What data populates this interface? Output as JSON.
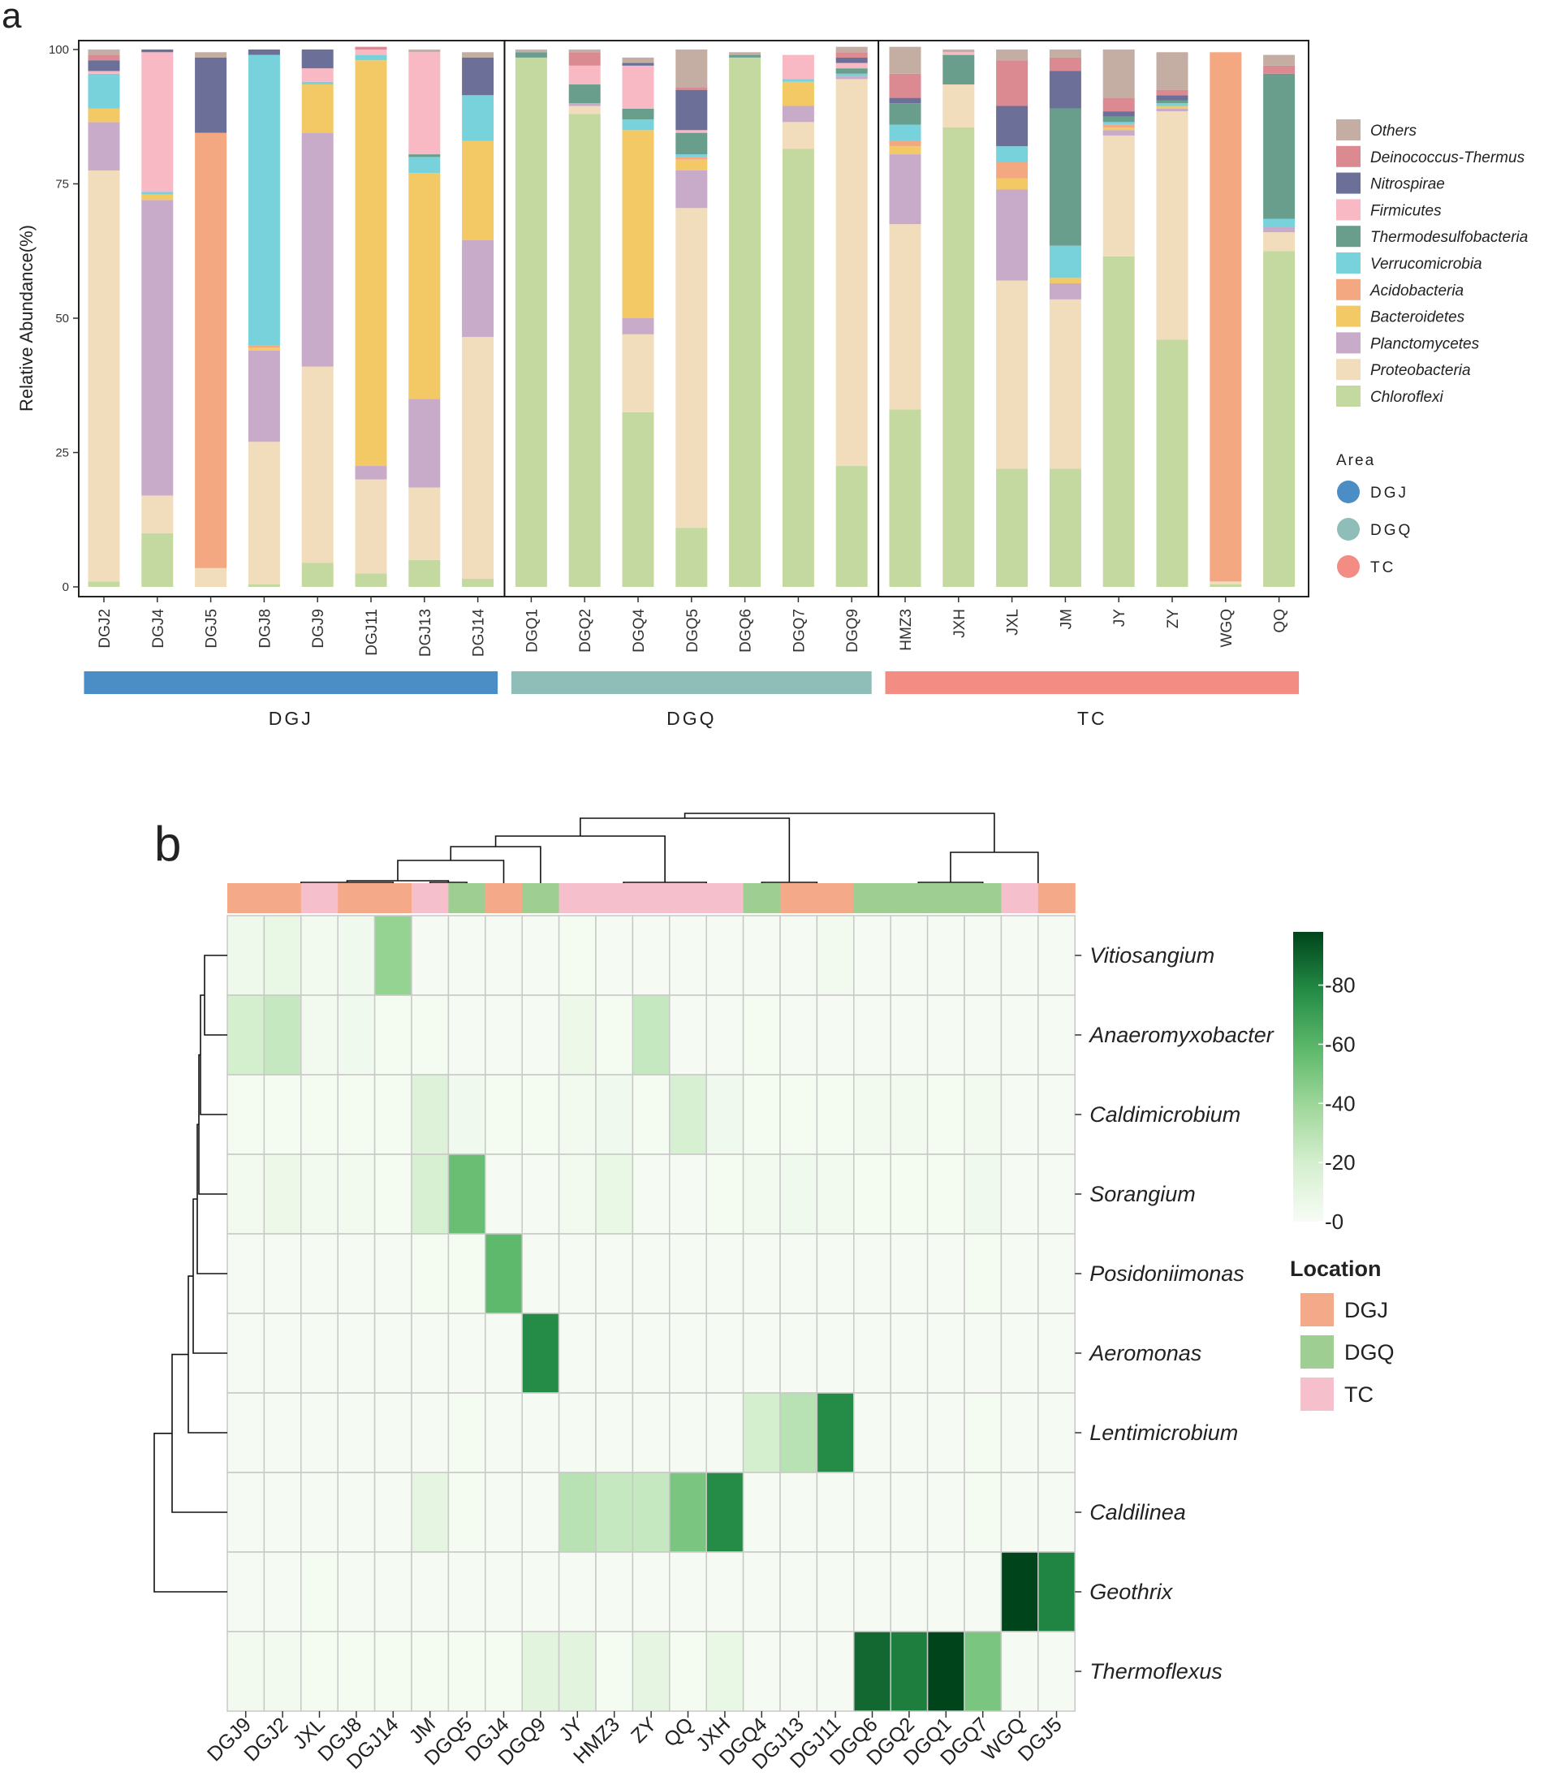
{
  "chart_data": [
    {
      "type": "bar",
      "stacked": true,
      "panel_label": "a",
      "ylabel": "Relative Abundance(%)",
      "ylim": [
        0,
        100
      ],
      "yticks": [
        0,
        25,
        50,
        75,
        100
      ],
      "categories": [
        "DGJ2",
        "DGJ4",
        "DGJ5",
        "DGJ8",
        "DGJ9",
        "DGJ11",
        "DGJ13",
        "DGJ14",
        "DGQ1",
        "DGQ2",
        "DGQ4",
        "DGQ5",
        "DGQ6",
        "DGQ7",
        "DGQ9",
        "HMZ3",
        "JXH",
        "JXL",
        "JM",
        "JY",
        "ZY",
        "WGQ",
        "QQ"
      ],
      "groups": [
        {
          "name": "DGJ",
          "start": 0,
          "end": 7
        },
        {
          "name": "DGQ",
          "start": 8,
          "end": 14
        },
        {
          "name": "TC",
          "start": 15,
          "end": 22
        }
      ],
      "series": [
        {
          "name": "Chloroflexi",
          "color": "#c4d9a0",
          "values": [
            1,
            10,
            0,
            0.5,
            4.5,
            2.5,
            5,
            1.5,
            98.5,
            88,
            32.5,
            11,
            98.5,
            81.5,
            22.5,
            33,
            85.5,
            22,
            22,
            61.5,
            46,
            0.5,
            62.5
          ]
        },
        {
          "name": "Proteobacteria",
          "color": "#f1dcbc",
          "values": [
            76.5,
            7,
            3.5,
            26.5,
            36.5,
            17.5,
            13.5,
            45,
            0,
            1.5,
            14.5,
            59.5,
            0,
            5,
            72,
            34.5,
            8,
            35,
            31.5,
            22.5,
            42.5,
            0.5,
            3.5
          ]
        },
        {
          "name": "Planctomycetes",
          "color": "#c8aac9",
          "values": [
            9,
            55,
            0,
            17,
            43.5,
            2.5,
            16.5,
            18,
            0,
            0.5,
            3,
            7,
            0,
            3,
            0.5,
            13,
            0,
            17,
            3,
            1,
            0.5,
            0,
            1
          ]
        },
        {
          "name": "Bacteroidetes",
          "color": "#f2c964",
          "values": [
            2.5,
            1,
            0,
            0.5,
            9,
            75.5,
            42,
            18.5,
            0,
            0,
            35,
            2,
            0,
            4.5,
            0,
            1.5,
            0,
            2,
            1,
            0.5,
            0.5,
            0,
            0
          ]
        },
        {
          "name": "Acidobacteria",
          "color": "#f4a882",
          "values": [
            0,
            0,
            81,
            0.5,
            0,
            0,
            0,
            0,
            0,
            0,
            0,
            0.5,
            0,
            0,
            0,
            1,
            0,
            3,
            0,
            0.5,
            0,
            98.5,
            0
          ]
        },
        {
          "name": "Verrucomicrobia",
          "color": "#77d2dc",
          "values": [
            6.5,
            0.5,
            0,
            54,
            0.5,
            1,
            3,
            8.5,
            0,
            0,
            2,
            0.5,
            0,
            0.5,
            0.5,
            3,
            0,
            3,
            6,
            0.5,
            0.5,
            0,
            1.5
          ]
        },
        {
          "name": "Thermodesulfobacteria",
          "color": "#6a9e8c",
          "values": [
            0,
            0,
            0,
            0,
            0,
            0,
            0.5,
            0,
            1,
            3.5,
            2,
            4,
            0.5,
            0,
            1,
            4,
            5.5,
            0,
            25.5,
            1,
            0.5,
            0,
            27
          ]
        },
        {
          "name": "Firmicutes",
          "color": "#f9b9c4",
          "values": [
            0.5,
            26,
            0,
            0,
            2.5,
            1,
            19,
            0,
            0,
            3.5,
            8,
            0.5,
            0,
            4.5,
            1,
            0,
            0.5,
            0,
            0,
            0,
            0,
            0,
            0
          ]
        },
        {
          "name": "Nitrospirae",
          "color": "#6c6f98",
          "values": [
            2,
            0.5,
            14,
            1,
            3.5,
            0,
            0,
            7,
            0,
            0,
            0.5,
            7.5,
            0,
            0,
            1,
            1,
            0,
            7.5,
            7,
            1,
            1,
            0,
            0
          ]
        },
        {
          "name": "Deinococcus-Thermus",
          "color": "#da8a90",
          "values": [
            1,
            0,
            0,
            0,
            0,
            0.5,
            0,
            0,
            0,
            2.5,
            0,
            0.5,
            0,
            0,
            1,
            4.5,
            0,
            8.5,
            2.5,
            2.5,
            1,
            0,
            1.5
          ]
        },
        {
          "name": "Others",
          "color": "#c4ada2",
          "values": [
            1,
            0,
            1,
            0,
            0,
            0,
            0.5,
            1,
            0.5,
            0.5,
            1,
            7,
            0.5,
            0,
            1,
            5,
            0.5,
            2,
            1.5,
            9,
            7,
            0,
            2
          ]
        }
      ],
      "legend": {
        "order": [
          "Others",
          "Deinococcus-Thermus",
          "Nitrospirae",
          "Firmicutes",
          "Thermodesulfobacteria",
          "Verrucomicrobia",
          "Acidobacteria",
          "Bacteroidetes",
          "Planctomycetes",
          "Proteobacteria",
          "Chloroflexi"
        ],
        "area_title": "Area",
        "areas": [
          {
            "name": "DGJ",
            "color": "#4a8ec5"
          },
          {
            "name": "DGQ",
            "color": "#8fbeb8"
          },
          {
            "name": "TC",
            "color": "#f38c82"
          }
        ]
      },
      "group_bar_colors": {
        "DGJ": "#4a8ec5",
        "DGQ": "#8fbeb8",
        "TC": "#f38c82"
      }
    },
    {
      "type": "heatmap",
      "panel_label": "b",
      "columns": [
        "DGJ9",
        "DGJ2",
        "JXL",
        "DGJ8",
        "DGJ14",
        "JM",
        "DGQ5",
        "DGJ4",
        "DGQ9",
        "JY",
        "HMZ3",
        "ZY",
        "QQ",
        "JXH",
        "DGQ4",
        "DGJ13",
        "DGJ11",
        "DGQ6",
        "DGQ2",
        "DGQ1",
        "DGQ7",
        "WGQ",
        "DGJ5"
      ],
      "column_location": [
        "DGJ",
        "DGJ",
        "TC",
        "DGJ",
        "DGJ",
        "TC",
        "DGQ",
        "DGJ",
        "DGQ",
        "TC",
        "TC",
        "TC",
        "TC",
        "TC",
        "DGQ",
        "DGJ",
        "DGJ",
        "DGQ",
        "DGQ",
        "DGQ",
        "DGQ",
        "TC",
        "DGJ"
      ],
      "rows": [
        "Vitiosangium",
        "Anaeromyxobacter",
        "Caldimicrobium",
        "Sorangium",
        "Posidoniimonas",
        "Aeromonas",
        "Lentimicrobium",
        "Caldilinea",
        "Geothrix",
        "Thermoflexus"
      ],
      "values": [
        [
          5,
          8,
          3,
          4,
          42,
          1,
          1,
          1,
          1,
          2,
          1,
          1,
          1,
          1,
          1,
          1,
          3,
          1,
          1,
          1,
          1,
          1,
          1
        ],
        [
          20,
          25,
          3,
          4,
          2,
          2,
          1,
          1,
          1,
          6,
          2,
          25,
          1,
          1,
          2,
          1,
          1,
          1,
          1,
          1,
          1,
          1,
          1
        ],
        [
          2,
          2,
          2,
          2,
          2,
          15,
          4,
          2,
          2,
          3,
          4,
          2,
          18,
          4,
          2,
          2,
          2,
          3,
          3,
          2,
          3,
          1,
          1
        ],
        [
          3,
          6,
          3,
          3,
          2,
          18,
          55,
          1,
          1,
          3,
          8,
          1,
          1,
          2,
          3,
          4,
          3,
          2,
          2,
          2,
          4,
          1,
          1
        ],
        [
          1,
          1,
          1,
          1,
          1,
          2,
          2,
          58,
          1,
          1,
          1,
          1,
          1,
          1,
          1,
          1,
          1,
          1,
          1,
          1,
          2,
          1,
          1
        ],
        [
          1,
          1,
          1,
          1,
          1,
          1,
          1,
          1,
          78,
          1,
          1,
          1,
          1,
          1,
          1,
          1,
          1,
          1,
          1,
          1,
          1,
          1,
          1
        ],
        [
          1,
          1,
          1,
          1,
          1,
          1,
          2,
          1,
          1,
          1,
          1,
          1,
          1,
          1,
          20,
          30,
          78,
          1,
          1,
          1,
          2,
          1,
          1
        ],
        [
          1,
          1,
          1,
          1,
          1,
          10,
          2,
          1,
          1,
          30,
          25,
          25,
          50,
          78,
          1,
          1,
          1,
          1,
          1,
          1,
          2,
          1,
          1
        ],
        [
          1,
          1,
          2,
          1,
          1,
          1,
          1,
          1,
          1,
          1,
          1,
          1,
          1,
          1,
          1,
          1,
          1,
          1,
          1,
          1,
          1,
          98,
          80
        ],
        [
          3,
          3,
          2,
          2,
          2,
          2,
          2,
          2,
          12,
          12,
          2,
          10,
          2,
          8,
          1,
          1,
          1,
          88,
          82,
          98,
          50,
          1,
          1
        ]
      ],
      "colorbar": {
        "min": 0,
        "max": 98,
        "ticks": [
          0,
          20,
          40,
          60,
          80
        ],
        "low_color": "#f7fcf5",
        "high_color": "#00441b"
      },
      "legend": {
        "title": "Location",
        "items": [
          {
            "name": "DGJ",
            "color": "#f4a989"
          },
          {
            "name": "DGQ",
            "color": "#9fce92"
          },
          {
            "name": "TC",
            "color": "#f6bfcc"
          }
        ]
      }
    }
  ]
}
